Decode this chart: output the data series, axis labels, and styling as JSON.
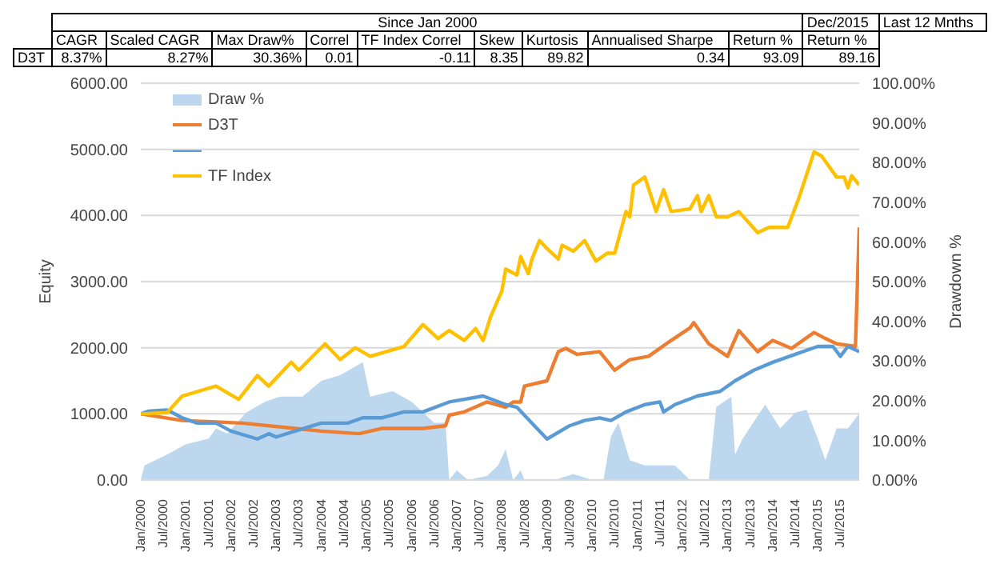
{
  "chart_data": {
    "type": "line",
    "ylabel": "Equity",
    "y2label": "Drawdown %",
    "annotations": [
      "Since Jan 2000",
      "Dec/2015",
      "Last 12 Mnths",
      "CAGR",
      "Scaled CAGR",
      "Max Draw%",
      "Correl",
      "TF Index Correl",
      "Skew",
      "Kurtosis",
      "Annualised Sharpe",
      "Return %",
      "Return %",
      "D3T",
      "8.37%",
      "8.27%",
      "30.36%",
      "0.01",
      "-0.11",
      "8.35",
      "89.82",
      "0.34",
      "93.09",
      "89.16"
    ],
    "xlim": [
      "2000-01",
      "2015-12"
    ],
    "xticks": [
      {
        "value": "2000-01",
        "label": "Jan/2000"
      },
      {
        "value": "2000-07",
        "label": "Jul/2000"
      },
      {
        "value": "2001-01",
        "label": "Jan/2001"
      },
      {
        "value": "2001-07",
        "label": "Jul/2001"
      },
      {
        "value": "2002-01",
        "label": "Jan/2002"
      },
      {
        "value": "2002-07",
        "label": "Jul/2002"
      },
      {
        "value": "2003-01",
        "label": "Jan/2003"
      },
      {
        "value": "2003-07",
        "label": "Jul/2003"
      },
      {
        "value": "2004-01",
        "label": "Jan/2004"
      },
      {
        "value": "2004-07",
        "label": "Jul/2004"
      },
      {
        "value": "2005-01",
        "label": "Jan/2005"
      },
      {
        "value": "2005-07",
        "label": "Jul/2005"
      },
      {
        "value": "2006-01",
        "label": "Jan/2006"
      },
      {
        "value": "2006-07",
        "label": "Jul/2006"
      },
      {
        "value": "2007-01",
        "label": "Jan/2007"
      },
      {
        "value": "2007-07",
        "label": "Jul/2007"
      },
      {
        "value": "2008-01",
        "label": "Jan/2008"
      },
      {
        "value": "2008-07",
        "label": "Jul/2008"
      },
      {
        "value": "2009-01",
        "label": "Jan/2009"
      },
      {
        "value": "2009-07",
        "label": "Jul/2009"
      },
      {
        "value": "2010-01",
        "label": "Jan/2010"
      },
      {
        "value": "2010-07",
        "label": "Jul/2010"
      },
      {
        "value": "2011-01",
        "label": "Jan/2011"
      },
      {
        "value": "2011-07",
        "label": "Jul/2011"
      },
      {
        "value": "2012-01",
        "label": "Jan/2012"
      },
      {
        "value": "2012-07",
        "label": "Jul/2012"
      },
      {
        "value": "2013-01",
        "label": "Jan/2013"
      },
      {
        "value": "2013-07",
        "label": "Jul/2013"
      },
      {
        "value": "2014-01",
        "label": "Jan/2014"
      },
      {
        "value": "2014-07",
        "label": "Jul/2014"
      },
      {
        "value": "2015-01",
        "label": "Jan/2015"
      },
      {
        "value": "2015-07",
        "label": "Jul/2015"
      }
    ],
    "ylim": [
      0,
      6000
    ],
    "yticks": [
      {
        "value": 0,
        "label": "0.00"
      },
      {
        "value": 1000,
        "label": "1000.00"
      },
      {
        "value": 2000,
        "label": "2000.00"
      },
      {
        "value": 3000,
        "label": "3000.00"
      },
      {
        "value": 4000,
        "label": "4000.00"
      },
      {
        "value": 5000,
        "label": "5000.00"
      },
      {
        "value": 6000,
        "label": "6000.00"
      }
    ],
    "y2lim": [
      0,
      100
    ],
    "y2ticks": [
      {
        "value": 0,
        "label": "0.00%"
      },
      {
        "value": 10,
        "label": "10.00%"
      },
      {
        "value": 20,
        "label": "20.00%"
      },
      {
        "value": 30,
        "label": "30.00%"
      },
      {
        "value": 40,
        "label": "40.00%"
      },
      {
        "value": 50,
        "label": "50.00%"
      },
      {
        "value": 60,
        "label": "60.00%"
      },
      {
        "value": 70,
        "label": "70.00%"
      },
      {
        "value": 80,
        "label": "80.00%"
      },
      {
        "value": 90,
        "label": "90.00%"
      },
      {
        "value": 100,
        "label": "100.00%"
      }
    ],
    "grid": "y",
    "legend": "top left",
    "marker": "none",
    "line_style": "solid",
    "series": [
      {
        "name": "Draw %",
        "type": "area",
        "axis": "y2",
        "color": "#bdd7ee",
        "x": [
          "2000-01",
          "2000-02",
          "2000-08",
          "2001-01",
          "2001-07",
          "2001-09",
          "2001-12",
          "2002-05",
          "2002-10",
          "2003-02",
          "2003-08",
          "2004-01",
          "2004-06",
          "2004-12",
          "2005-02",
          "2005-08",
          "2006-01",
          "2006-07",
          "2006-10",
          "2006-11",
          "2007-01",
          "2007-04",
          "2007-09",
          "2007-12",
          "2008-02",
          "2008-04",
          "2008-06",
          "2008-07",
          "2009-03",
          "2009-08",
          "2010-01",
          "2010-04",
          "2010-06",
          "2010-08",
          "2010-11",
          "2011-03",
          "2011-07",
          "2011-11",
          "2012-03",
          "2012-08",
          "2012-10",
          "2013-02",
          "2013-03",
          "2013-05",
          "2013-11",
          "2014-03",
          "2014-07",
          "2014-10",
          "2015-01",
          "2015-03",
          "2015-06",
          "2015-09",
          "2015-12"
        ],
        "values": [
          0,
          3.7,
          6.4,
          9,
          10.4,
          13,
          11.7,
          17,
          19.7,
          21,
          21,
          25,
          26.4,
          29.7,
          21,
          22.4,
          19.7,
          14.4,
          14.4,
          0,
          2.4,
          0,
          1,
          3.7,
          7.7,
          0,
          2.4,
          0,
          0,
          1.5,
          0,
          0,
          11,
          14.4,
          5,
          3.7,
          3.7,
          3.7,
          0,
          0,
          18.4,
          21,
          6.4,
          10.4,
          19,
          13,
          17,
          17.7,
          10.4,
          5,
          13,
          13,
          16.8
        ]
      },
      {
        "name": "D3T",
        "color": "#ed7d31",
        "x": [
          "2000-01",
          "2000-12",
          "2002-04",
          "2003-06",
          "2004-01",
          "2004-11",
          "2005-05",
          "2006-04",
          "2006-10",
          "2006-11",
          "2007-03",
          "2007-09",
          "2008-02",
          "2008-04",
          "2008-06",
          "2008-07",
          "2009-01",
          "2009-04",
          "2009-06",
          "2009-09",
          "2010-03",
          "2010-07",
          "2010-11",
          "2011-04",
          "2011-10",
          "2012-03",
          "2012-04",
          "2012-08",
          "2013-01",
          "2013-04",
          "2013-09",
          "2014-01",
          "2014-06",
          "2014-12",
          "2015-03",
          "2015-06",
          "2015-11",
          "2015-12"
        ],
        "values": [
          1000,
          900,
          860,
          780,
          740,
          700,
          780,
          780,
          820,
          980,
          1030,
          1180,
          1100,
          1180,
          1180,
          1420,
          1500,
          1940,
          1990,
          1900,
          1940,
          1660,
          1820,
          1870,
          2110,
          2300,
          2380,
          2060,
          1870,
          2260,
          1940,
          2110,
          1990,
          2230,
          2140,
          2060,
          2020,
          3820
        ]
      },
      {
        "color": "#5b9bd5",
        "x": [
          "2000-01",
          "2000-03",
          "2000-08",
          "2000-12",
          "2001-04",
          "2001-09",
          "2002-01",
          "2002-08",
          "2002-11",
          "2003-01",
          "2003-06",
          "2004-01",
          "2004-08",
          "2004-12",
          "2005-05",
          "2005-11",
          "2006-04",
          "2006-11",
          "2007-03",
          "2007-08",
          "2008-02",
          "2008-05",
          "2008-09",
          "2009-01",
          "2009-07",
          "2009-11",
          "2010-03",
          "2010-06",
          "2010-10",
          "2011-03",
          "2011-07",
          "2011-08",
          "2011-11",
          "2012-05",
          "2012-11",
          "2013-03",
          "2013-08",
          "2014-01",
          "2014-07",
          "2015-01",
          "2015-05",
          "2015-07",
          "2015-09",
          "2015-12"
        ],
        "values": [
          1000,
          1040,
          1060,
          940,
          860,
          860,
          740,
          620,
          700,
          650,
          740,
          860,
          860,
          940,
          940,
          1030,
          1030,
          1180,
          1220,
          1270,
          1140,
          1100,
          860,
          620,
          820,
          900,
          940,
          900,
          1030,
          1140,
          1180,
          1030,
          1140,
          1270,
          1340,
          1500,
          1660,
          1780,
          1900,
          2020,
          2020,
          1870,
          2020,
          1940
        ]
      },
      {
        "name": "TF Index",
        "color": "#ffc000",
        "x": [
          "2000-01",
          "2000-08",
          "2000-12",
          "2001-09",
          "2002-03",
          "2002-08",
          "2002-11",
          "2003-05",
          "2003-07",
          "2004-02",
          "2004-06",
          "2004-10",
          "2005-02",
          "2005-11",
          "2006-04",
          "2006-08",
          "2006-11",
          "2007-03",
          "2007-06",
          "2007-08",
          "2007-10",
          "2008-01",
          "2008-02",
          "2008-05",
          "2008-06",
          "2008-08",
          "2008-09",
          "2008-11",
          "2009-01",
          "2009-04",
          "2009-05",
          "2009-08",
          "2009-11",
          "2010-02",
          "2010-05",
          "2010-07",
          "2010-10",
          "2010-11",
          "2010-12",
          "2011-03",
          "2011-06",
          "2011-08",
          "2011-10",
          "2012-03",
          "2012-05",
          "2012-06",
          "2012-08",
          "2012-10",
          "2013-01",
          "2013-04",
          "2013-09",
          "2013-12",
          "2014-05",
          "2014-08",
          "2014-12",
          "2015-02",
          "2015-04",
          "2015-06",
          "2015-08",
          "2015-09",
          "2015-10",
          "2015-12"
        ],
        "values": [
          1000,
          1020,
          1270,
          1420,
          1220,
          1580,
          1420,
          1780,
          1660,
          2060,
          1820,
          2000,
          1870,
          2020,
          2350,
          2140,
          2260,
          2110,
          2290,
          2110,
          2470,
          2860,
          3190,
          3100,
          3380,
          3120,
          3340,
          3620,
          3500,
          3340,
          3550,
          3460,
          3620,
          3310,
          3430,
          3430,
          4060,
          3980,
          4460,
          4580,
          4060,
          4390,
          4060,
          4100,
          4300,
          4060,
          4300,
          3980,
          3980,
          4060,
          3740,
          3820,
          3820,
          4270,
          4960,
          4900,
          4740,
          4580,
          4580,
          4420,
          4600,
          4460
        ]
      }
    ]
  }
}
